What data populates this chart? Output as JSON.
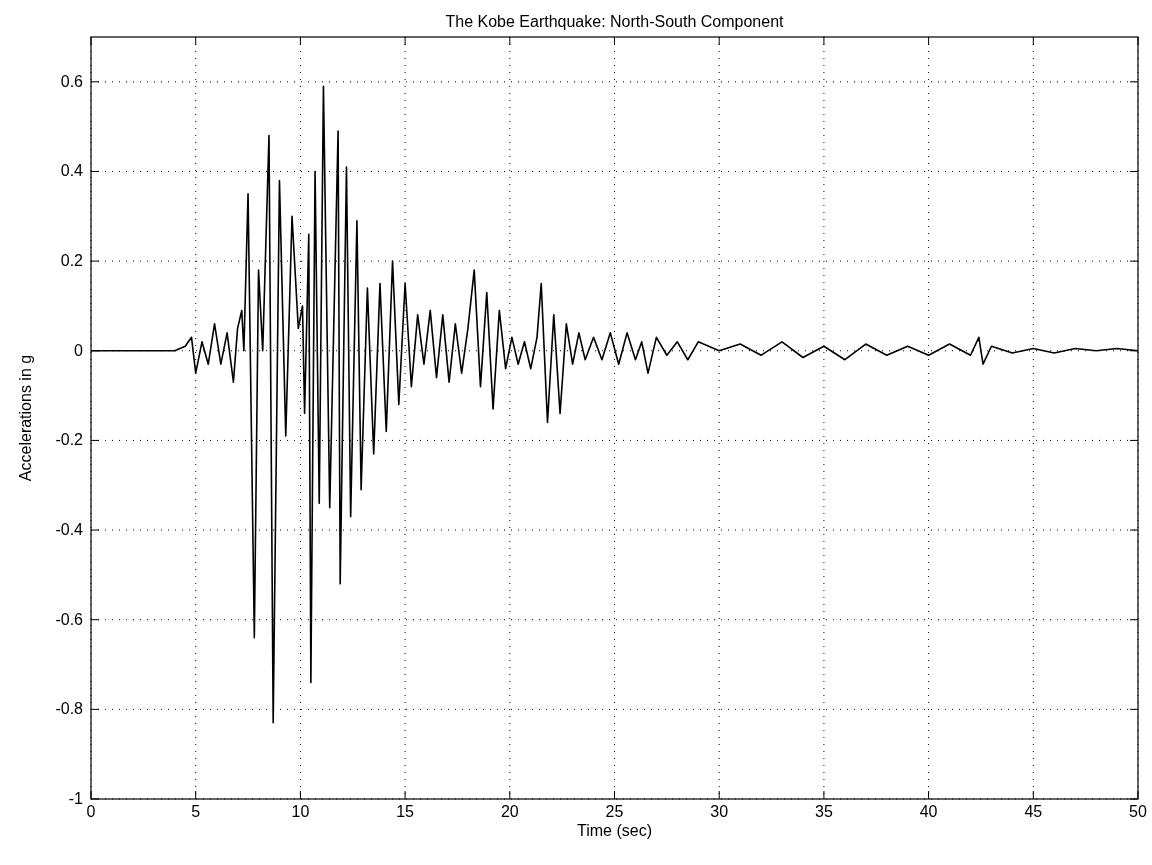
{
  "chart_data": {
    "type": "line",
    "title": "The Kobe Earthquake: North-South Component",
    "xlabel": "Time (sec)",
    "ylabel": "Accelerations in g",
    "series": [
      {
        "color": "#000000",
        "x": [
          0,
          4.0,
          4.5,
          4.8,
          5.0,
          5.3,
          5.6,
          5.9,
          6.2,
          6.5,
          6.8,
          7.0,
          7.2,
          7.3,
          7.5,
          7.8,
          8.0,
          8.2,
          8.5,
          8.7,
          9.0,
          9.3,
          9.6,
          9.9,
          10.1,
          10.2,
          10.4,
          10.5,
          10.7,
          10.9,
          11.1,
          11.4,
          11.8,
          11.9,
          12.2,
          12.4,
          12.7,
          12.9,
          13.2,
          13.5,
          13.8,
          14.1,
          14.4,
          14.7,
          15.0,
          15.3,
          15.6,
          15.9,
          16.2,
          16.5,
          16.8,
          17.1,
          17.4,
          17.7,
          18.0,
          18.3,
          18.6,
          18.9,
          19.2,
          19.5,
          19.8,
          20.1,
          20.4,
          20.7,
          21.0,
          21.3,
          21.5,
          21.8,
          22.1,
          22.4,
          22.7,
          23.0,
          23.3,
          23.6,
          24.0,
          24.4,
          24.8,
          25.2,
          25.6,
          26.0,
          26.3,
          26.6,
          27.0,
          27.5,
          28,
          28.5,
          29,
          30,
          31,
          32,
          33,
          34,
          35,
          36,
          37,
          38,
          39,
          40,
          41,
          42,
          42.4,
          42.6,
          43,
          44,
          45,
          46,
          47,
          48,
          49,
          50
        ],
        "values": [
          0,
          0,
          0.01,
          0.03,
          -0.05,
          0.02,
          -0.03,
          0.06,
          -0.03,
          0.04,
          -0.07,
          0.05,
          0.09,
          0.0,
          0.35,
          -0.64,
          0.18,
          0.0,
          0.48,
          -0.83,
          0.38,
          -0.19,
          0.3,
          0.05,
          0.1,
          -0.14,
          0.26,
          -0.74,
          0.4,
          -0.34,
          0.59,
          -0.35,
          0.49,
          -0.52,
          0.41,
          -0.37,
          0.29,
          -0.31,
          0.14,
          -0.23,
          0.15,
          -0.18,
          0.2,
          -0.12,
          0.15,
          -0.08,
          0.08,
          -0.03,
          0.09,
          -0.06,
          0.08,
          -0.07,
          0.06,
          -0.05,
          0.05,
          0.18,
          -0.08,
          0.13,
          -0.13,
          0.09,
          -0.04,
          0.03,
          -0.03,
          0.02,
          -0.04,
          0.03,
          0.15,
          -0.16,
          0.08,
          -0.14,
          0.06,
          -0.03,
          0.04,
          -0.02,
          0.03,
          -0.02,
          0.04,
          -0.03,
          0.04,
          -0.02,
          0.02,
          -0.05,
          0.03,
          -0.01,
          0.02,
          -0.02,
          0.02,
          0,
          0.015,
          -0.01,
          0.02,
          -0.015,
          0.01,
          -0.02,
          0.015,
          -0.01,
          0.01,
          -0.01,
          0.015,
          -0.01,
          0.03,
          -0.03,
          0.01,
          -0.005,
          0.005,
          -0.005,
          0.005,
          0,
          0.005,
          0
        ]
      }
    ],
    "xlim": [
      0,
      50
    ],
    "xticks": [
      0,
      5,
      10,
      15,
      20,
      25,
      30,
      35,
      40,
      45,
      50
    ],
    "ylim": [
      -1,
      0.7
    ],
    "yticks": [
      -1,
      -0.8,
      -0.6,
      -0.4,
      -0.2,
      0,
      0.2,
      0.4,
      0.6
    ],
    "grid": true,
    "line_style": "solid",
    "marker": "none"
  }
}
